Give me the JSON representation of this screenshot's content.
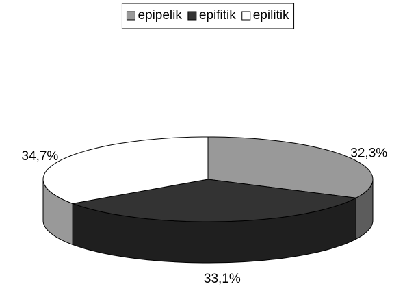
{
  "chart_data": {
    "type": "pie3d",
    "categories": [
      "epipelik",
      "epifitik",
      "epilitik"
    ],
    "values": [
      32.3,
      33.1,
      34.7
    ],
    "value_labels": [
      "32,3%",
      "33,1%",
      "34,7%"
    ],
    "colors": [
      "#999999",
      "#333333",
      "#ffffff"
    ],
    "legend": "top"
  }
}
